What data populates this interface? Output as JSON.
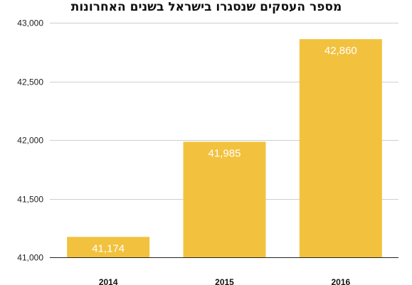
{
  "chart_data": {
    "type": "bar",
    "title": "מספר העסקים שנסגרו בישראל בשנים האחרונות",
    "categories": [
      "2014",
      "2015",
      "2016"
    ],
    "values": [
      41174,
      41985,
      42860
    ],
    "data_labels": [
      "41,174",
      "41,985",
      "42,860"
    ],
    "ylim": [
      41000,
      43000
    ],
    "y_ticks": [
      41000,
      41500,
      42000,
      42500,
      43000
    ],
    "y_tick_labels": [
      "41,000",
      "41,500",
      "42,000",
      "42,500",
      "43,000"
    ],
    "xlabel": "",
    "ylabel": "",
    "grid": true,
    "legend": "none",
    "bar_color": "#F2C23E"
  }
}
